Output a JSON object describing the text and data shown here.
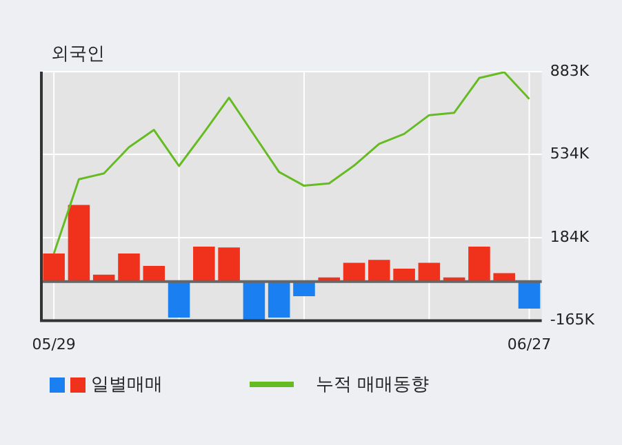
{
  "chart_data": {
    "type": "bar",
    "title": "외국인",
    "categories": [
      "05/29",
      null,
      null,
      null,
      null,
      null,
      null,
      null,
      null,
      null,
      null,
      null,
      null,
      null,
      null,
      null,
      null,
      null,
      null,
      "06/27"
    ],
    "series": [
      {
        "name": "일별매매",
        "colors": [
          "#f0321c",
          "#f0321c",
          "#f0321c",
          "#f0321c",
          "#f0321c",
          "#1a7ff0",
          "#f0321c",
          "#f0321c",
          "#1a7ff0",
          "#1a7ff0",
          "#1a7ff0",
          "#f0321c",
          "#f0321c",
          "#f0321c",
          "#f0321c",
          "#f0321c",
          "#f0321c",
          "#f0321c",
          "#f0321c",
          "#1a7ff0"
        ],
        "values": [
          118,
          322,
          29,
          118,
          66,
          -152,
          147,
          143,
          -162,
          -152,
          -62,
          17,
          79,
          91,
          54,
          79,
          17,
          147,
          35,
          -114
        ]
      },
      {
        "name": "누적 매매동향",
        "type": "line",
        "color": "#66bb22",
        "values": [
          118,
          430,
          455,
          565,
          638,
          486,
          627,
          773,
          617,
          461,
          403,
          413,
          488,
          579,
          621,
          700,
          710,
          856,
          881,
          768
        ]
      }
    ],
    "ylim": [
      -165,
      883
    ],
    "yticks": [
      {
        "value": -165,
        "label": "-165K"
      },
      {
        "value": 184,
        "label": "184K"
      },
      {
        "value": 534,
        "label": "534K"
      },
      {
        "value": 883,
        "label": "883K"
      }
    ],
    "grid": true,
    "legend": "bottom"
  }
}
